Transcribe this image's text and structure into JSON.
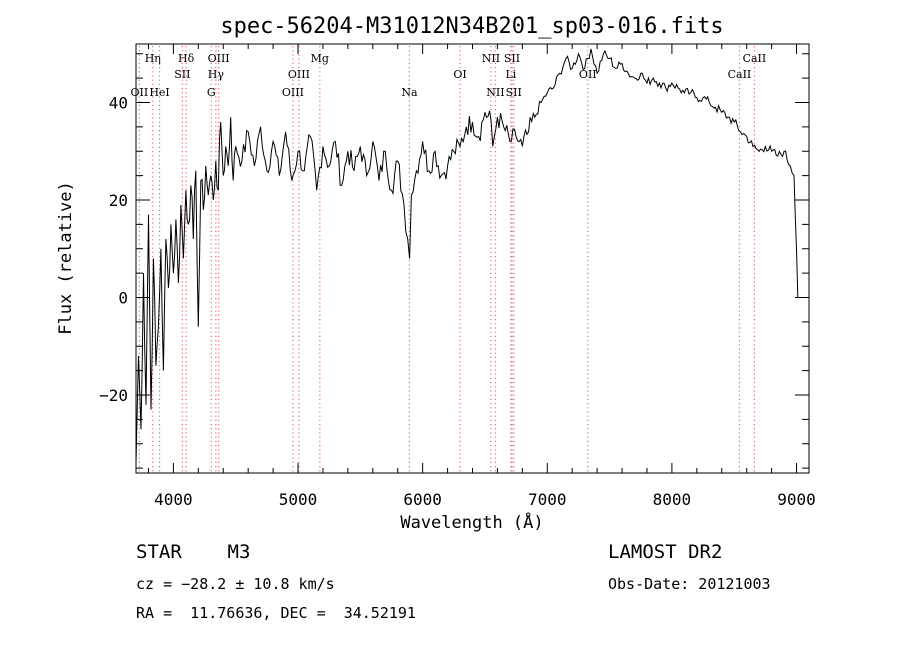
{
  "chart_data": {
    "type": "line",
    "title": "spec-56204-M31012N34B201_sp03-016.fits",
    "xlabel": "Wavelength (Å)",
    "ylabel": "Flux (relative)",
    "xlim": [
      3700,
      9100
    ],
    "ylim": [
      -36,
      52
    ],
    "xticks": [
      4000,
      5000,
      6000,
      7000,
      8000,
      9000
    ],
    "xtick_labels": [
      "4000",
      "5000",
      "6000",
      "7000",
      "8000",
      "9000"
    ],
    "yticks": [
      -20,
      0,
      20,
      40
    ],
    "ytick_labels": [
      "−20",
      "0",
      "20",
      "40"
    ],
    "grid": false,
    "line_color": "#000000",
    "marker_color": "#e07070",
    "series": [
      {
        "x": [
          3700,
          3720,
          3740,
          3760,
          3780,
          3800,
          3820,
          3840,
          3860,
          3880,
          3900,
          3920,
          3940,
          3960,
          3980,
          4000,
          4020,
          4040,
          4060,
          4080,
          4100,
          4120,
          4140,
          4160,
          4180,
          4200,
          4220,
          4240,
          4260,
          4280,
          4300,
          4320,
          4340,
          4360,
          4380,
          4400,
          4420,
          4440,
          4460,
          4480,
          4500,
          4550,
          4600,
          4650,
          4700,
          4750,
          4800,
          4850,
          4900,
          4950,
          5000,
          5050,
          5100,
          5150,
          5200,
          5250,
          5300,
          5350,
          5400,
          5450,
          5500,
          5550,
          5600,
          5650,
          5700,
          5750,
          5800,
          5850,
          5880,
          5895,
          5910,
          5950,
          6000,
          6050,
          6100,
          6150,
          6200,
          6250,
          6300,
          6350,
          6400,
          6450,
          6500,
          6550,
          6563,
          6600,
          6650,
          6700,
          6750,
          6800,
          6850,
          6900,
          6950,
          7000,
          7050,
          7100,
          7150,
          7200,
          7250,
          7300,
          7350,
          7400,
          7450,
          7500,
          7550,
          7600,
          7650,
          7700,
          7750,
          7800,
          7850,
          7900,
          7950,
          8000,
          8050,
          8100,
          8150,
          8200,
          8250,
          8300,
          8350,
          8400,
          8450,
          8500,
          8550,
          8600,
          8650,
          8700,
          8750,
          8800,
          8850,
          8900,
          8950,
          8980,
          9000,
          9010
        ],
        "y": [
          -34,
          -12,
          -27,
          5,
          -22,
          17,
          -23,
          8,
          -14,
          -6,
          10,
          -15,
          12,
          2,
          15,
          5,
          16,
          3,
          19,
          8,
          22,
          15,
          23,
          12,
          26,
          -6,
          24,
          18,
          27,
          21,
          25,
          20,
          28,
          22,
          36,
          25,
          31,
          27,
          37,
          24,
          31,
          28,
          34,
          27,
          35,
          26,
          32,
          25,
          34,
          24,
          30,
          26,
          33,
          22,
          31,
          27,
          32,
          23,
          30,
          26,
          31,
          25,
          32,
          24,
          30,
          22,
          28,
          19,
          12,
          8,
          21,
          26,
          32,
          26,
          30,
          25,
          27,
          30,
          31,
          35,
          36,
          33,
          38,
          36,
          31,
          37,
          35,
          32,
          33,
          31,
          34,
          37,
          40,
          42,
          43,
          46,
          49,
          47,
          50,
          47,
          51,
          46,
          50,
          49,
          47,
          48,
          46,
          45,
          46,
          44,
          45,
          44,
          43,
          44,
          43,
          42,
          42,
          41,
          41,
          40,
          39,
          38,
          37,
          36,
          34,
          33,
          31,
          30,
          31,
          30,
          29,
          30,
          27,
          25,
          10,
          0
        ]
      }
    ],
    "lines": [
      {
        "x": 3727,
        "labels": [
          {
            "text": "OII",
            "row": 3
          }
        ]
      },
      {
        "x": 3835,
        "labels": [
          {
            "text": "Hη",
            "row": 1
          }
        ]
      },
      {
        "x": 3889,
        "labels": [
          {
            "text": "HeI",
            "row": 3
          }
        ]
      },
      {
        "x": 4072,
        "labels": [
          {
            "text": "SII",
            "row": 2
          }
        ]
      },
      {
        "x": 4102,
        "labels": [
          {
            "text": "Hδ",
            "row": 1
          }
        ]
      },
      {
        "x": 4304,
        "labels": [
          {
            "text": "G",
            "row": 3
          }
        ]
      },
      {
        "x": 4341,
        "labels": [
          {
            "text": "Hγ",
            "row": 2
          }
        ]
      },
      {
        "x": 4363,
        "labels": [
          {
            "text": "OIII",
            "row": 1
          }
        ]
      },
      {
        "x": 4959,
        "labels": [
          {
            "text": "OIII",
            "row": 3
          }
        ]
      },
      {
        "x": 5007,
        "labels": [
          {
            "text": "OIII",
            "row": 2
          }
        ]
      },
      {
        "x": 5175,
        "labels": [
          {
            "text": "Mg",
            "row": 1
          }
        ]
      },
      {
        "x": 5894,
        "labels": [
          {
            "text": "Na",
            "row": 3
          }
        ]
      },
      {
        "x": 6300,
        "labels": [
          {
            "text": "OI",
            "row": 2
          }
        ]
      },
      {
        "x": 6548,
        "labels": [
          {
            "text": "NII",
            "row": 1
          }
        ]
      },
      {
        "x": 6584,
        "labels": [
          {
            "text": "NII",
            "row": 3
          }
        ]
      },
      {
        "x": 6708,
        "labels": [
          {
            "text": "Li",
            "row": 2
          }
        ]
      },
      {
        "x": 6717,
        "labels": [
          {
            "text": "SII",
            "row": 1
          }
        ]
      },
      {
        "x": 6731,
        "labels": [
          {
            "text": "SII",
            "row": 3
          }
        ]
      },
      {
        "x": 7325,
        "labels": [
          {
            "text": "OII",
            "row": 2
          }
        ]
      },
      {
        "x": 8542,
        "labels": [
          {
            "text": "CaII",
            "row": 2
          }
        ]
      },
      {
        "x": 8662,
        "labels": [
          {
            "text": "CaII",
            "row": 1
          }
        ]
      }
    ]
  },
  "info": {
    "class_line": "STAR    M3",
    "survey": "LAMOST DR2",
    "cz_line": "cz = −28.2 ± 10.8 km/s",
    "obs_date": "Obs-Date: 20121003",
    "coords": "RA =  11.76636, DEC =  34.52191"
  }
}
